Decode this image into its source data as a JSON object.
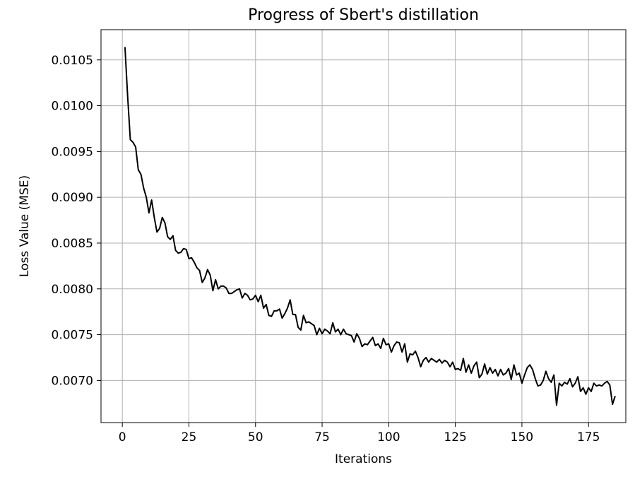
{
  "chart_data": {
    "type": "line",
    "title": "Progress of Sbert's distillation",
    "xlabel": "Iterations",
    "ylabel": "Loss Value (MSE)",
    "xlim": [
      -8,
      189
    ],
    "ylim": [
      0.00654,
      0.01083
    ],
    "grid": true,
    "line_color": "#000000",
    "grid_color": "#b0b0b0",
    "x_ticks": [
      0,
      25,
      50,
      75,
      100,
      125,
      150,
      175
    ],
    "x_tick_labels": [
      "0",
      "25",
      "50",
      "75",
      "100",
      "125",
      "150",
      "175"
    ],
    "y_ticks": [
      0.007,
      0.0075,
      0.008,
      0.0085,
      0.009,
      0.0095,
      0.01,
      0.0105
    ],
    "y_tick_labels": [
      "0.0070",
      "0.0075",
      "0.0080",
      "0.0085",
      "0.0090",
      "0.0095",
      "0.0100",
      "0.0105"
    ],
    "series": [
      {
        "values": [
          0.01064,
          0.0101,
          0.00963,
          0.0096,
          0.00955,
          0.0093,
          0.00925,
          0.0091,
          0.009,
          0.00883,
          0.00897,
          0.00878,
          0.00862,
          0.00866,
          0.00878,
          0.00872,
          0.00857,
          0.00854,
          0.00858,
          0.00842,
          0.00839,
          0.0084,
          0.00844,
          0.00843,
          0.00833,
          0.00834,
          0.00829,
          0.00823,
          0.0082,
          0.00807,
          0.00812,
          0.00821,
          0.00815,
          0.00798,
          0.0081,
          0.008,
          0.00803,
          0.00803,
          0.00801,
          0.00795,
          0.00795,
          0.00797,
          0.00799,
          0.008,
          0.0079,
          0.00795,
          0.00793,
          0.00788,
          0.00789,
          0.00793,
          0.00786,
          0.00793,
          0.00779,
          0.00783,
          0.00771,
          0.0077,
          0.00776,
          0.00776,
          0.00778,
          0.00768,
          0.00773,
          0.00779,
          0.00788,
          0.00772,
          0.00772,
          0.00758,
          0.00755,
          0.00771,
          0.00763,
          0.00764,
          0.00762,
          0.0076,
          0.0075,
          0.00757,
          0.00751,
          0.00756,
          0.00754,
          0.00751,
          0.00763,
          0.00753,
          0.00756,
          0.0075,
          0.00756,
          0.00751,
          0.0075,
          0.00749,
          0.00742,
          0.00751,
          0.00746,
          0.00737,
          0.0074,
          0.00739,
          0.00743,
          0.00747,
          0.00738,
          0.0074,
          0.00735,
          0.00746,
          0.00739,
          0.0074,
          0.00731,
          0.00738,
          0.00742,
          0.00741,
          0.00731,
          0.0074,
          0.0072,
          0.00729,
          0.00728,
          0.00732,
          0.00725,
          0.00715,
          0.00722,
          0.00725,
          0.0072,
          0.00724,
          0.00722,
          0.0072,
          0.00723,
          0.00719,
          0.00722,
          0.0072,
          0.00715,
          0.0072,
          0.00712,
          0.00713,
          0.00711,
          0.00724,
          0.00709,
          0.00717,
          0.00708,
          0.00716,
          0.0072,
          0.00703,
          0.00707,
          0.00718,
          0.00707,
          0.00714,
          0.00708,
          0.00712,
          0.00705,
          0.00712,
          0.00706,
          0.00708,
          0.00713,
          0.00701,
          0.00717,
          0.00706,
          0.00708,
          0.00697,
          0.00706,
          0.00714,
          0.00717,
          0.00712,
          0.00702,
          0.00694,
          0.00695,
          0.007,
          0.0071,
          0.00702,
          0.00698,
          0.00706,
          0.00673,
          0.00697,
          0.00694,
          0.00698,
          0.00696,
          0.00702,
          0.00693,
          0.00697,
          0.00704,
          0.00688,
          0.00692,
          0.00685,
          0.00692,
          0.00688,
          0.00697,
          0.00694,
          0.00695,
          0.00694,
          0.00697,
          0.00699,
          0.00695,
          0.00674,
          0.00683
        ]
      }
    ]
  }
}
